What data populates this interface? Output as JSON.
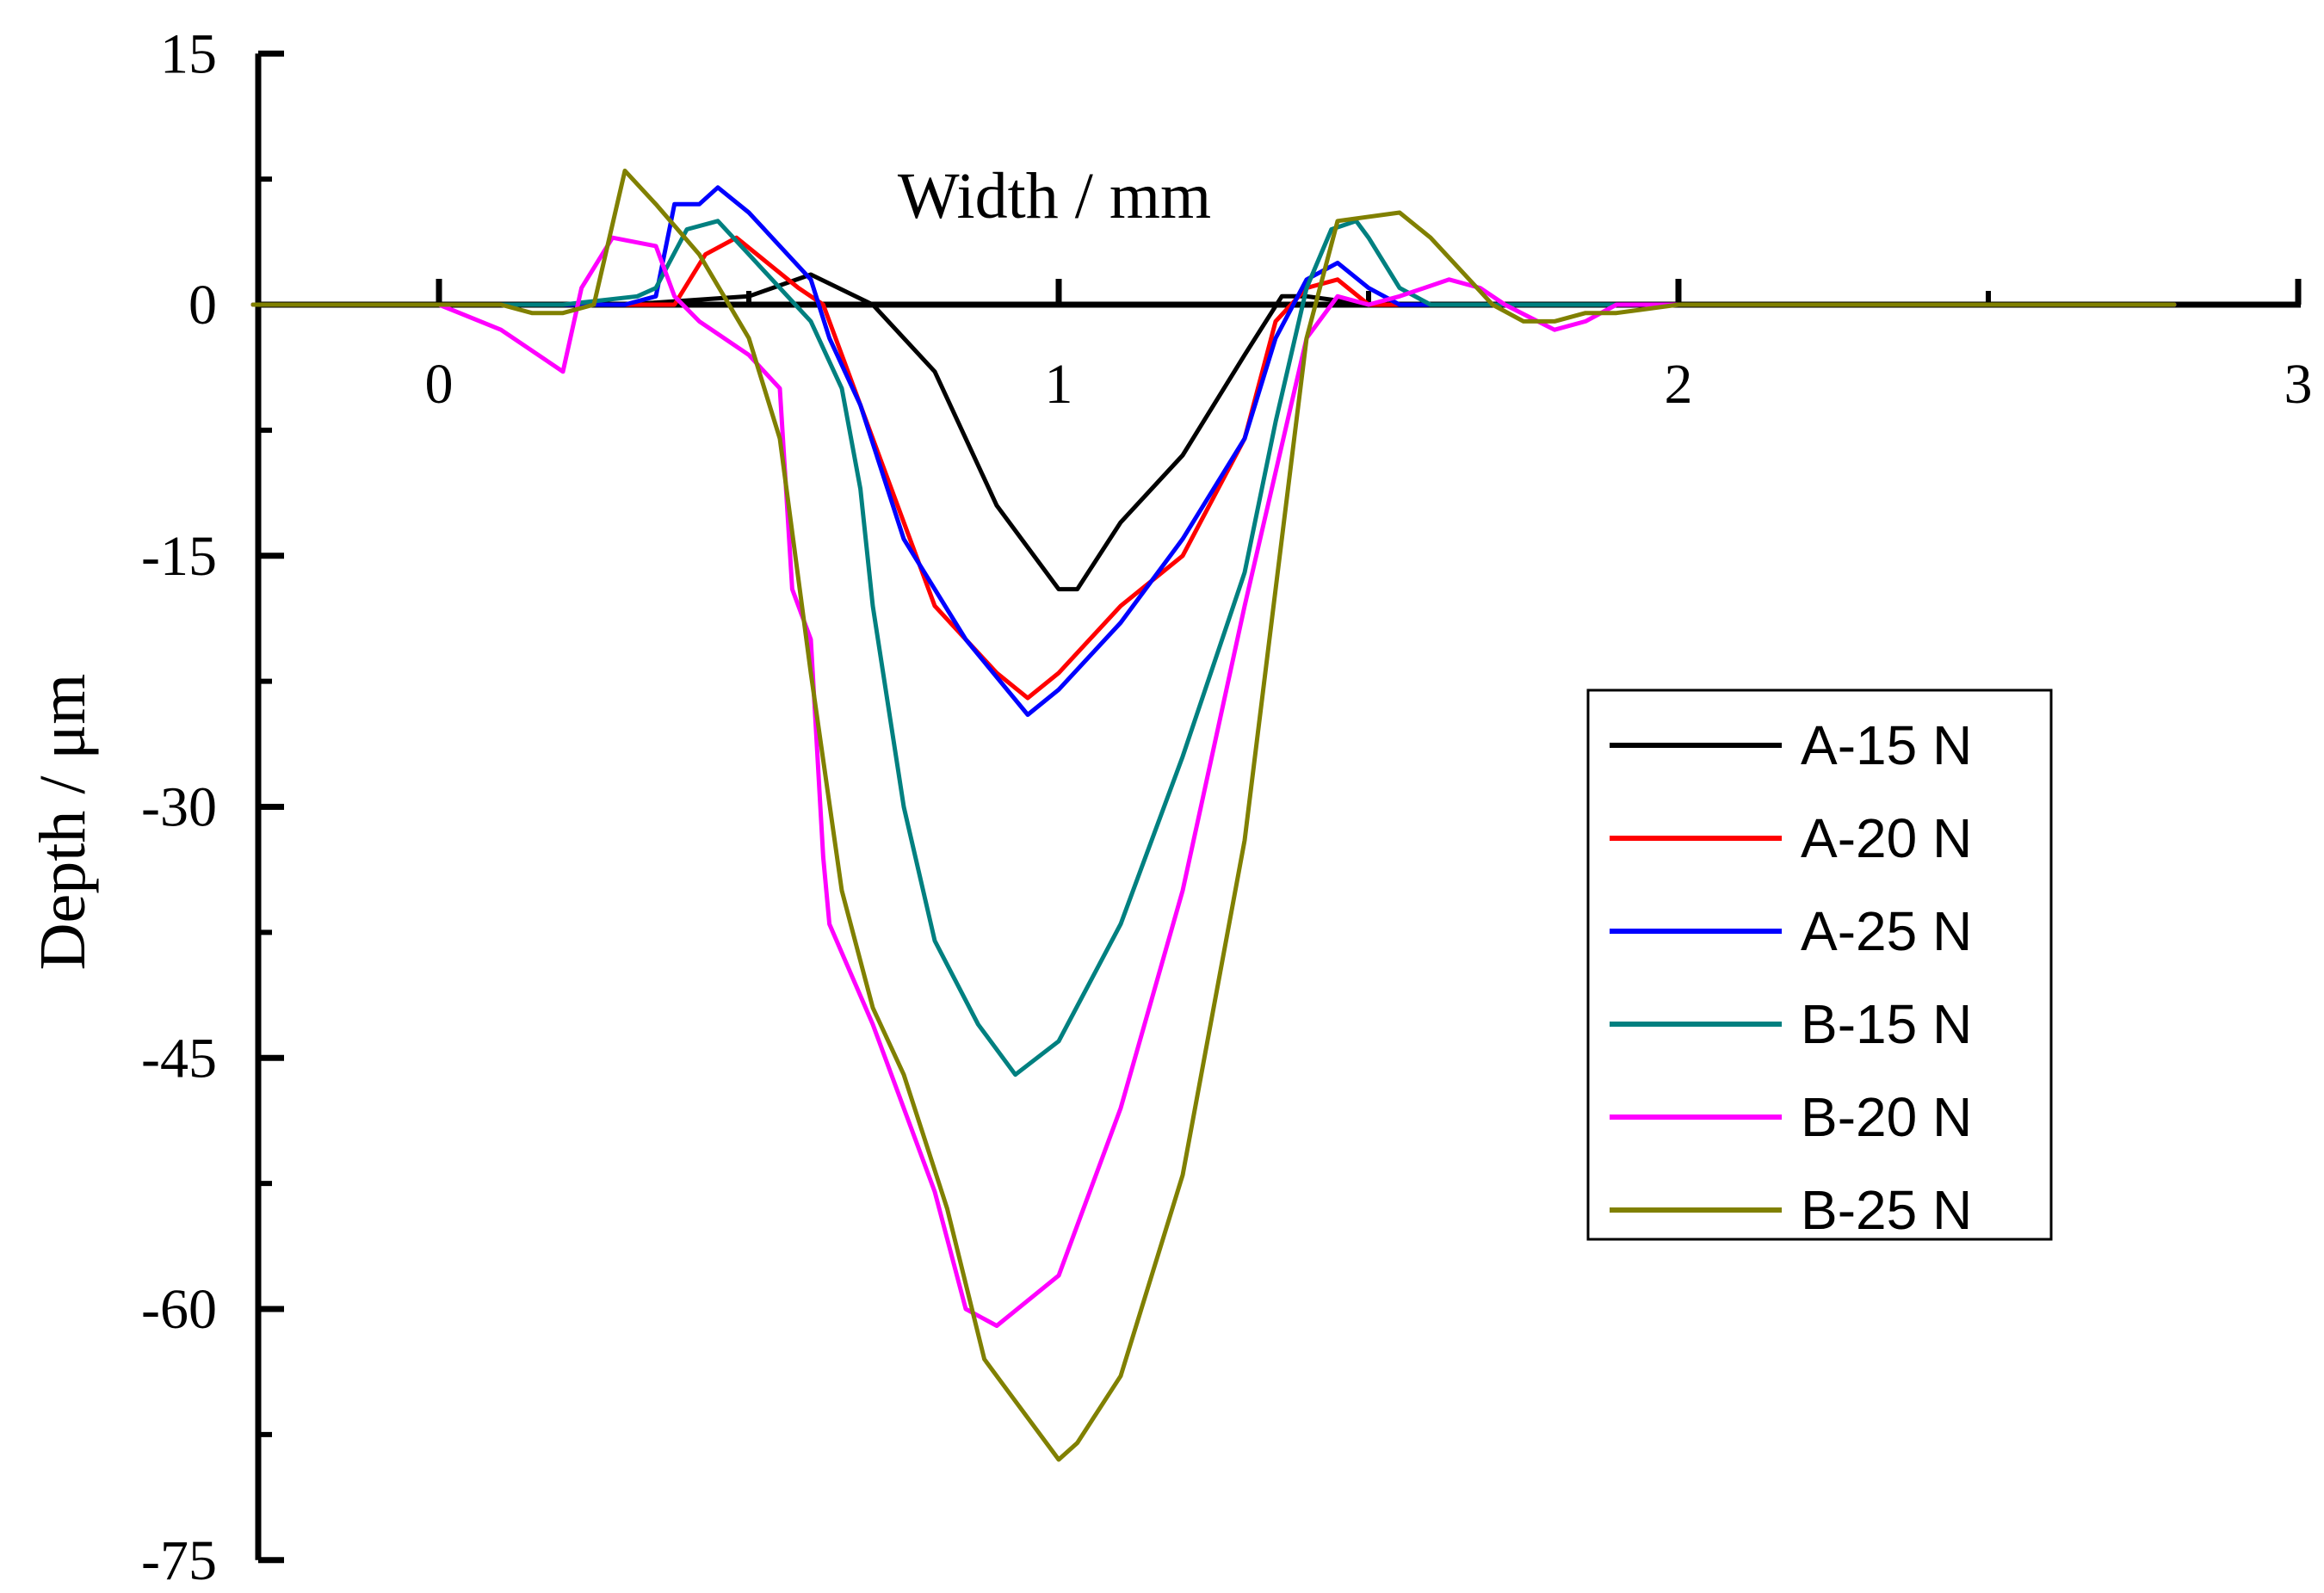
{
  "chart_data": {
    "type": "line",
    "title": "",
    "xlabel": "Width / mm",
    "ylabel": "Depth / μm",
    "xlim": [
      -0.3,
      3.0
    ],
    "ylim": [
      -75,
      15
    ],
    "x_ticks": [
      "0",
      "1",
      "2",
      "3"
    ],
    "y_ticks": [
      "15",
      "0",
      "-15",
      "-30",
      "-45",
      "-60",
      "-75"
    ],
    "legend_position": "right",
    "series": [
      {
        "name": "A-15 N",
        "color": "#000000",
        "x": [
          -0.3,
          0.0,
          0.3,
          0.5,
          0.6,
          0.7,
          0.8,
          0.9,
          1.0,
          1.03,
          1.1,
          1.2,
          1.3,
          1.36,
          1.4,
          1.5,
          2.0,
          2.8
        ],
        "y": [
          0,
          0,
          0,
          0.5,
          1.8,
          0,
          -4,
          -12,
          -17,
          -17,
          -13,
          -9,
          -3,
          0.5,
          0.5,
          0,
          0,
          0
        ]
      },
      {
        "name": "A-20 N",
        "color": "#ff0000",
        "x": [
          -0.3,
          0.0,
          0.3,
          0.38,
          0.43,
          0.48,
          0.53,
          0.58,
          0.62,
          0.65,
          0.7,
          0.8,
          0.9,
          0.95,
          1.0,
          1.1,
          1.2,
          1.3,
          1.35,
          1.4,
          1.45,
          1.5,
          2.0,
          2.8
        ],
        "y": [
          0,
          0,
          0,
          0,
          3,
          4,
          2.5,
          1,
          0,
          -3,
          -8,
          -18,
          -22,
          -23.5,
          -22,
          -18,
          -15,
          -8,
          -1,
          1,
          1.5,
          0,
          0,
          0
        ]
      },
      {
        "name": "A-25 N",
        "color": "#0000ff",
        "x": [
          -0.3,
          0.0,
          0.3,
          0.35,
          0.38,
          0.42,
          0.45,
          0.5,
          0.55,
          0.6,
          0.63,
          0.68,
          0.75,
          0.85,
          0.95,
          1.0,
          1.1,
          1.2,
          1.3,
          1.35,
          1.4,
          1.45,
          1.5,
          1.55,
          2.0,
          2.8
        ],
        "y": [
          0,
          0,
          0,
          0.5,
          6,
          6,
          7,
          5.5,
          3.5,
          1.5,
          -2,
          -6,
          -14,
          -20,
          -24.5,
          -23,
          -19,
          -14,
          -8,
          -2,
          1.5,
          2.5,
          1,
          0,
          0,
          0
        ]
      },
      {
        "name": "B-15 N",
        "color": "#008080",
        "x": [
          -0.3,
          0.0,
          0.2,
          0.32,
          0.35,
          0.4,
          0.45,
          0.5,
          0.55,
          0.6,
          0.65,
          0.68,
          0.7,
          0.75,
          0.8,
          0.87,
          0.93,
          1.0,
          1.1,
          1.2,
          1.3,
          1.35,
          1.4,
          1.44,
          1.48,
          1.5,
          1.55,
          1.6,
          2.0,
          2.8
        ],
        "y": [
          0,
          0,
          0,
          0.5,
          1,
          4.5,
          5,
          3,
          1,
          -1,
          -5,
          -11,
          -18,
          -30,
          -38,
          -43,
          -46,
          -44,
          -37,
          -27,
          -16,
          -7,
          1,
          4.5,
          5,
          4,
          1,
          0,
          0,
          0
        ]
      },
      {
        "name": "B-20 N",
        "color": "#ff00ff",
        "x": [
          -0.3,
          0.0,
          0.1,
          0.2,
          0.23,
          0.28,
          0.35,
          0.38,
          0.42,
          0.5,
          0.55,
          0.57,
          0.6,
          0.62,
          0.63,
          0.7,
          0.75,
          0.8,
          0.85,
          0.9,
          1.0,
          1.1,
          1.2,
          1.3,
          1.4,
          1.45,
          1.5,
          1.55,
          1.63,
          1.68,
          1.72,
          1.8,
          1.85,
          1.9,
          2.0,
          2.8
        ],
        "y": [
          0,
          0,
          -1.5,
          -4,
          1,
          4,
          3.5,
          0.5,
          -1,
          -3,
          -5,
          -17,
          -20,
          -33,
          -37,
          -43,
          -48,
          -53,
          -60,
          -61,
          -58,
          -48,
          -35,
          -18,
          -2,
          0.5,
          0,
          0.5,
          1.5,
          1,
          0,
          -1.5,
          -1,
          0,
          0,
          0
        ]
      },
      {
        "name": "B-25 N",
        "color": "#808000",
        "x": [
          -0.3,
          -0.2,
          0.0,
          0.1,
          0.15,
          0.2,
          0.25,
          0.3,
          0.35,
          0.42,
          0.5,
          0.55,
          0.6,
          0.65,
          0.7,
          0.75,
          0.82,
          0.88,
          0.92,
          1.0,
          1.03,
          1.1,
          1.2,
          1.3,
          1.35,
          1.4,
          1.45,
          1.55,
          1.6,
          1.65,
          1.7,
          1.75,
          1.8,
          1.85,
          1.9,
          2.0,
          2.8
        ],
        "y": [
          0,
          0,
          0,
          0,
          -0.5,
          -0.5,
          0,
          8,
          6,
          3,
          -2,
          -8,
          -22,
          -35,
          -42,
          -46,
          -54,
          -63,
          -65,
          -69,
          -68,
          -64,
          -52,
          -32,
          -17,
          -2,
          5,
          5.5,
          4,
          2,
          0,
          -1,
          -1,
          -0.5,
          -0.5,
          0,
          0
        ]
      }
    ]
  }
}
